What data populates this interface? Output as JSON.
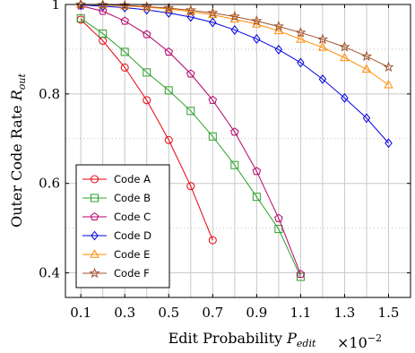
{
  "chart_data": {
    "type": "line",
    "xlabel": "Edit Probability",
    "xlabel_symbol": "P",
    "xlabel_subscript": "edit",
    "x_multiplier_base": "×10",
    "x_multiplier_exp": "−2",
    "ylabel": "Outer Code Rate",
    "ylabel_symbol": "R",
    "ylabel_subscript": "out",
    "xlim": [
      0.03,
      1.6
    ],
    "ylim": [
      0.345,
      1.0
    ],
    "x_ticks": [
      0.1,
      0.3,
      0.5,
      0.7,
      0.9,
      1.1,
      1.3,
      1.5
    ],
    "x_tick_labels": [
      "0.1",
      "0.3",
      "0.5",
      "0.7",
      "0.9",
      "1.1",
      "1.3",
      "1.5"
    ],
    "x_grid": [
      0.1,
      0.2,
      0.3,
      0.4,
      0.5,
      0.6,
      0.7,
      0.8,
      0.9,
      1.0,
      1.1,
      1.2,
      1.3,
      1.4,
      1.5
    ],
    "y_ticks": [
      0.4,
      0.6,
      0.8,
      1.0
    ],
    "y_tick_labels": [
      "0.4",
      "0.6",
      "0.8",
      "1"
    ],
    "y_grid_minor": [
      0.5,
      0.7,
      0.9
    ],
    "grid": true,
    "legend_position": "bottom-left",
    "series": [
      {
        "name": "Code A",
        "color": "#e8000b",
        "marker": "circle",
        "x": [
          0.1,
          0.2,
          0.3,
          0.4,
          0.5,
          0.6,
          0.7
        ],
        "y": [
          0.966,
          0.919,
          0.859,
          0.786,
          0.697,
          0.594,
          0.473
        ]
      },
      {
        "name": "Code B",
        "color": "#2ca02c",
        "marker": "square",
        "x": [
          0.1,
          0.2,
          0.3,
          0.4,
          0.5,
          0.6,
          0.7,
          0.8,
          0.9,
          1.0,
          1.1
        ],
        "y": [
          0.969,
          0.935,
          0.894,
          0.848,
          0.808,
          0.762,
          0.705,
          0.641,
          0.57,
          0.498,
          0.391
        ]
      },
      {
        "name": "Code C",
        "color": "#b5006b",
        "marker": "pentagon",
        "x": [
          0.1,
          0.2,
          0.3,
          0.4,
          0.5,
          0.6,
          0.7,
          0.8,
          0.9,
          1.0,
          1.1
        ],
        "y": [
          0.997,
          0.985,
          0.963,
          0.933,
          0.894,
          0.845,
          0.786,
          0.715,
          0.627,
          0.522,
          0.397
        ]
      },
      {
        "name": "Code D",
        "color": "#0000e0",
        "marker": "diamond",
        "x": [
          0.1,
          0.2,
          0.3,
          0.4,
          0.5,
          0.6,
          0.7,
          0.8,
          0.9,
          1.0,
          1.1,
          1.2,
          1.3,
          1.4,
          1.5
        ],
        "y": [
          0.999,
          0.996,
          0.993,
          0.988,
          0.981,
          0.972,
          0.96,
          0.943,
          0.923,
          0.899,
          0.87,
          0.833,
          0.791,
          0.746,
          0.69
        ]
      },
      {
        "name": "Code E",
        "color": "#ff8c00",
        "marker": "triangle",
        "x": [
          0.1,
          0.2,
          0.3,
          0.4,
          0.5,
          0.6,
          0.7,
          0.8,
          0.9,
          1.0,
          1.1,
          1.2,
          1.3,
          1.4,
          1.5
        ],
        "y": [
          1.0,
          0.999,
          0.997,
          0.994,
          0.99,
          0.984,
          0.977,
          0.967,
          0.956,
          0.941,
          0.922,
          0.904,
          0.881,
          0.855,
          0.82
        ]
      },
      {
        "name": "Code F",
        "color": "#a0522d",
        "marker": "star",
        "x": [
          0.1,
          0.2,
          0.3,
          0.4,
          0.5,
          0.6,
          0.7,
          0.8,
          0.9,
          1.0,
          1.1,
          1.2,
          1.3,
          1.4,
          1.5
        ],
        "y": [
          1.0,
          0.999,
          0.998,
          0.995,
          0.992,
          0.987,
          0.981,
          0.973,
          0.963,
          0.951,
          0.937,
          0.922,
          0.905,
          0.884,
          0.86
        ]
      }
    ]
  }
}
